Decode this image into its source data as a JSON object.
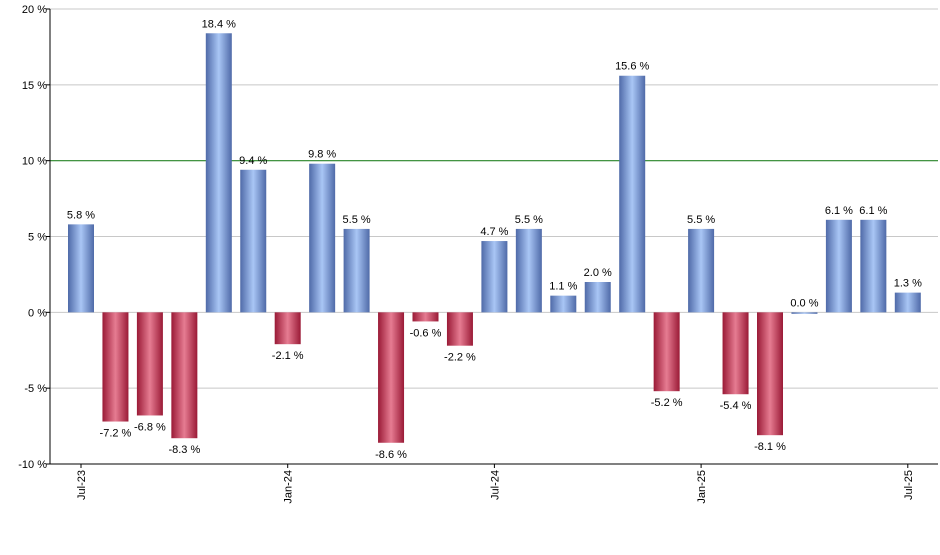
{
  "chart_data": {
    "type": "bar",
    "categories": [
      "Jul-23",
      "Aug-23",
      "Sep-23",
      "Oct-23",
      "Nov-23",
      "Dec-23",
      "Jan-24",
      "Feb-24",
      "Mar-24",
      "Apr-24",
      "May-24",
      "Jun-24",
      "Jul-24",
      "Aug-24",
      "Sep-24",
      "Oct-24",
      "Nov-24",
      "Dec-24",
      "Jan-25",
      "Feb-25",
      "Mar-25",
      "Apr-25",
      "May-25",
      "Jun-25",
      "Jul-25"
    ],
    "values": [
      5.8,
      -7.2,
      -6.8,
      -8.3,
      18.4,
      9.4,
      -2.1,
      9.8,
      5.5,
      -8.6,
      -0.6,
      -2.2,
      4.7,
      5.5,
      1.1,
      2.0,
      15.6,
      -5.2,
      5.5,
      -5.4,
      -8.1,
      0.0,
      6.1,
      6.1,
      1.3
    ],
    "value_labels": [
      "5.8 %",
      "-7.2 %",
      "-6.8 %",
      "-8.3 %",
      "18.4 %",
      "9.4 %",
      "-2.1 %",
      "9.8 %",
      "5.5 %",
      "-8.6 %",
      "-0.6 %",
      "-2.2 %",
      "4.7 %",
      "5.5 %",
      "1.1 %",
      "2.0 %",
      "15.6 %",
      "-5.2 %",
      "5.5 %",
      "-5.4 %",
      "-8.1 %",
      "0.0 %",
      "6.1 %",
      "6.1 %",
      "1.3 %"
    ],
    "x_tick_labels": [
      "Jul-23",
      "Jan-24",
      "Jul-24",
      "Jan-25",
      "Jul-25"
    ],
    "x_tick_positions": [
      "Jul-23",
      "Jan-24",
      "Jul-24",
      "Jan-25",
      "Jul-25"
    ],
    "y_ticks": [
      -10,
      -5,
      0,
      5,
      10,
      15,
      20
    ],
    "y_tick_labels": [
      "-10 %",
      "-5 %",
      "0 %",
      "5 %",
      "10 %",
      "15 %",
      "20 %"
    ],
    "ylim": [
      -10,
      20
    ],
    "reference_line": 10,
    "grid": true,
    "title": "",
    "xlabel": "",
    "ylabel": "",
    "colors": {
      "positive_dark": "#4f6aa8",
      "positive_light": "#a9c6f5",
      "negative_dark": "#9a1a36",
      "negative_light": "#e67c92",
      "reference_line": "#2e8b2e",
      "grid": "#c8c8c8",
      "axis": "#000000"
    }
  }
}
